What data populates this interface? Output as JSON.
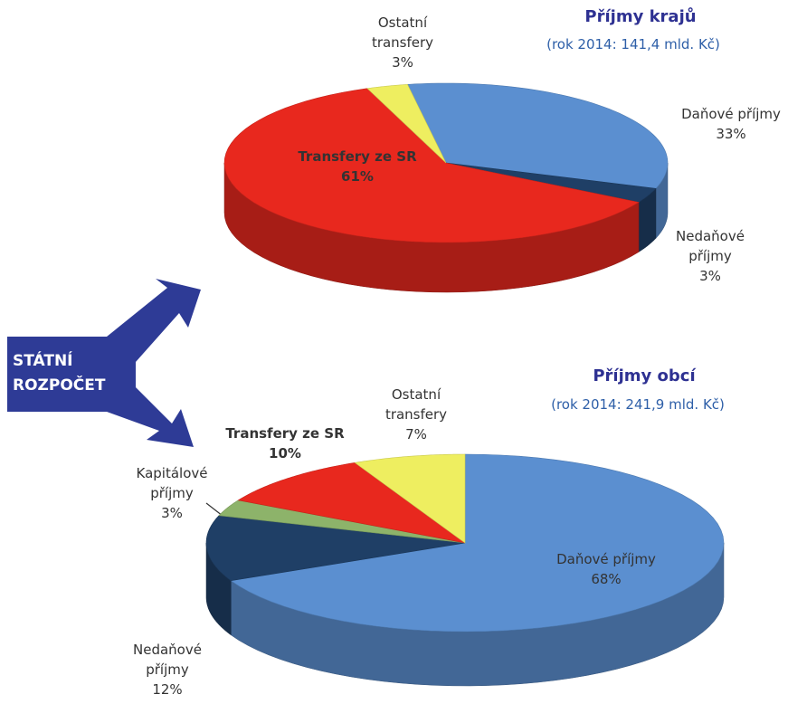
{
  "chart_data": [
    {
      "type": "pie",
      "title": "Příjmy krajů",
      "subtitle": "(rok 2014: 141,4 mld. Kč)",
      "categories": [
        "Daňové příjmy",
        "Nedaňové příjmy",
        "Transfery ze SR",
        "Ostatní transfery"
      ],
      "values": [
        33,
        3,
        61,
        3
      ],
      "value_labels": [
        "33%",
        "3%",
        "61%",
        "3%"
      ],
      "colors": [
        "#5b8fd0",
        "#1f3f66",
        "#e8281e",
        "#eeee60"
      ]
    },
    {
      "type": "pie",
      "title": "Příjmy obcí",
      "subtitle": "(rok 2014: 241,9 mld. Kč)",
      "categories": [
        "Daňové příjmy",
        "Nedaňové příjmy",
        "Kapitálové příjmy",
        "Transfery ze SR",
        "Ostatní transfery"
      ],
      "values": [
        68,
        12,
        3,
        10,
        7
      ],
      "value_labels": [
        "68%",
        "12%",
        "3%",
        "10%",
        "7%"
      ],
      "colors": [
        "#5b8fd0",
        "#1f3f66",
        "#8db36a",
        "#e8281e",
        "#eeee60"
      ]
    }
  ],
  "annotation": "STÁTNÍ ROZPOČET"
}
